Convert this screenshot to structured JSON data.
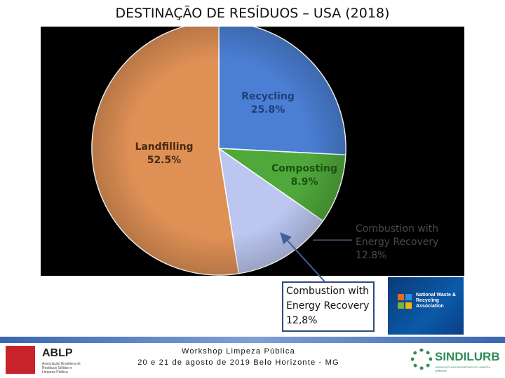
{
  "slide": {
    "title": "DESTINAÇÃO DE RESÍDUOS – USA (2018)",
    "callout_line1": "Combustion with",
    "callout_line2": "Energy Recovery",
    "callout_line3": "12,8%",
    "footer_line1": "Workshop Limpeza Pública",
    "footer_line2": "20 e 21 de agosto de 2019 Belo Horizonte - MG",
    "ablp_name": "ABLP",
    "ablp_sub": "Associação Brasileira de Resíduos Sólidos e Limpeza Pública",
    "nwra_text": "National Waste & Recycling Association",
    "sindi_name": "SINDILURB",
    "sindi_sub": "SINDICATO DAS EMPRESAS DE LIMPEZA URBANA"
  },
  "chart_data": {
    "type": "pie",
    "title": "",
    "slices": [
      {
        "label": "Recycling",
        "value": 25.8,
        "value_label": "25.8%",
        "color": "#4a7fd4"
      },
      {
        "label": "Composting",
        "value": 8.9,
        "value_label": "8.9%",
        "color": "#4ea93a"
      },
      {
        "label": "Combustion with",
        "label2": "Energy Recovery",
        "value": 12.8,
        "value_label": "12.8%",
        "color": "#bcc6f0"
      },
      {
        "label": "Landfilling",
        "value": 52.5,
        "value_label": "52.5%",
        "color": "#df9055"
      }
    ],
    "start_angle_deg": 0,
    "direction": "clockwise"
  }
}
